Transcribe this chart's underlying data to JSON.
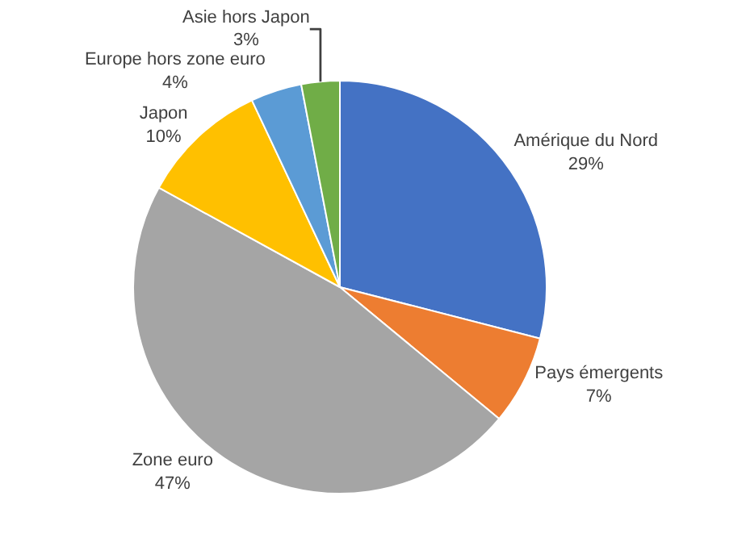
{
  "chart_data": {
    "type": "pie",
    "categories": [
      "Amérique du Nord",
      "Pays émergents",
      "Zone euro",
      "Japon",
      "Europe hors zone euro",
      "Asie hors Japon"
    ],
    "values": [
      29,
      7,
      47,
      10,
      4,
      3
    ],
    "value_labels": [
      "29%",
      "7%",
      "47%",
      "10%",
      "4%",
      "3%"
    ],
    "colors": [
      "#4472c4",
      "#ed7d31",
      "#a5a5a5",
      "#ffc000",
      "#5b9bd5",
      "#70ad47"
    ],
    "legend": false
  }
}
